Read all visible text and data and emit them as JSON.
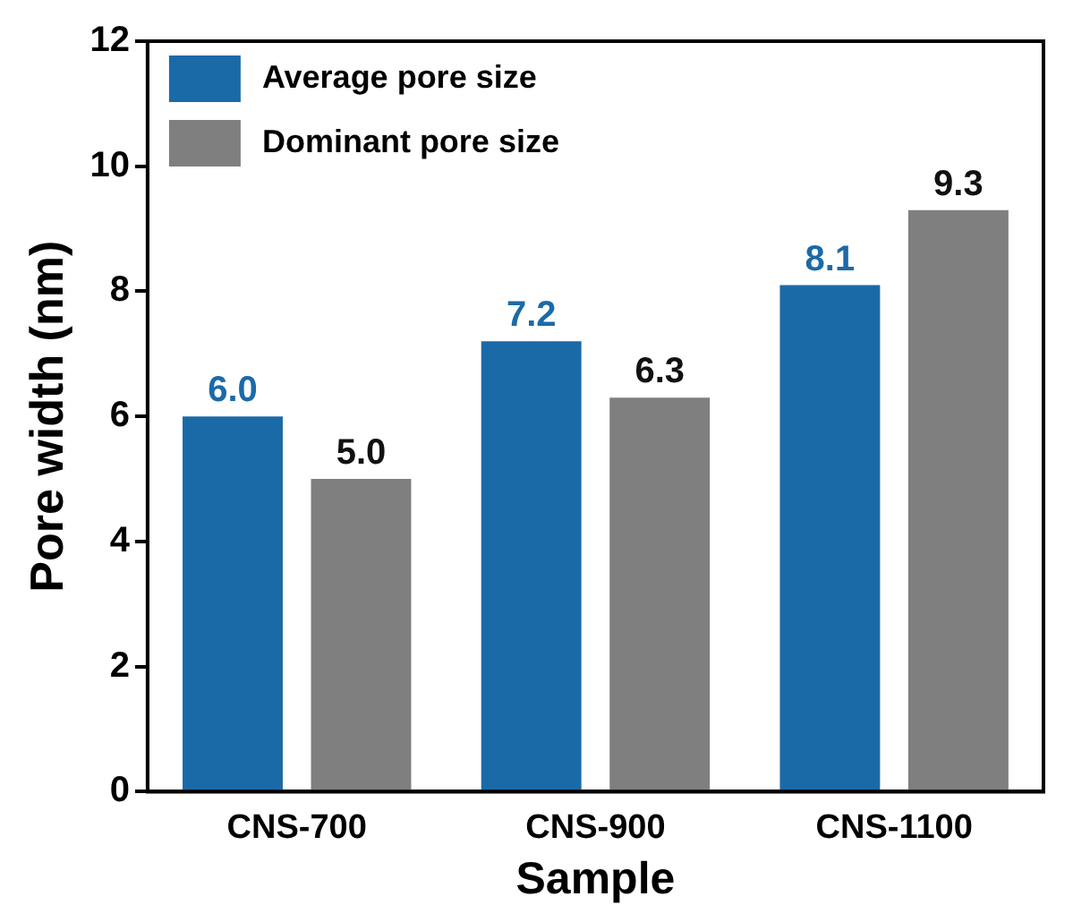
{
  "chart_data": {
    "type": "bar",
    "xlabel": "Sample",
    "ylabel": "Pore width (nm)",
    "categories": [
      "CNS-700",
      "CNS-900",
      "CNS-1100"
    ],
    "series": [
      {
        "name": "Average pore size",
        "color": "#1b6aa8",
        "values": [
          6.0,
          7.2,
          8.1
        ],
        "value_labels": [
          "6.0",
          "7.2",
          "8.1"
        ]
      },
      {
        "name": "Dominant pore size",
        "color": "#7f7f7f",
        "values": [
          5.0,
          6.3,
          9.3
        ],
        "value_labels": [
          "5.0",
          "6.3",
          "9.3"
        ]
      }
    ],
    "ylim": [
      0,
      12
    ],
    "yticks": [
      0,
      2,
      4,
      6,
      8,
      10,
      12
    ],
    "grid": false,
    "legend": "top left"
  }
}
